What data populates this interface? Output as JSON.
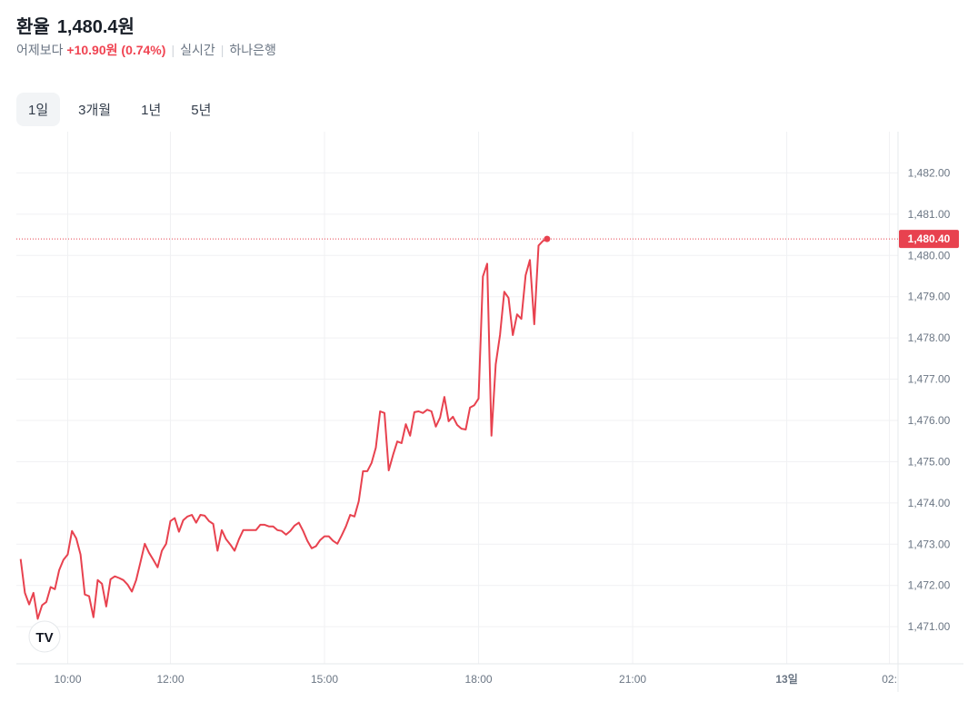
{
  "header": {
    "title": "환율",
    "price": "1,480.4원",
    "compare_label": "어제보다",
    "change": "+10.90원 (0.74%)",
    "mode": "실시간",
    "source": "하나은행"
  },
  "tabs": [
    {
      "label": "1일",
      "active": true
    },
    {
      "label": "3개월",
      "active": false
    },
    {
      "label": "1년",
      "active": false
    },
    {
      "label": "5년",
      "active": false
    }
  ],
  "colors": {
    "line": "#e8424f",
    "change": "#f04452",
    "grid": "#f0f1f3"
  },
  "icons": {
    "logo": "tradingview-logo"
  },
  "chart_data": {
    "type": "line",
    "title": "",
    "xlabel": "",
    "ylabel": "",
    "ylim": [
      1470.1,
      1483.0
    ],
    "xlim": [
      "09:00",
      "26:10"
    ],
    "grid": true,
    "y_ticks": [
      "1,471.00",
      "1,472.00",
      "1,473.00",
      "1,474.00",
      "1,475.00",
      "1,476.00",
      "1,477.00",
      "1,478.00",
      "1,479.00",
      "1,480.00",
      "1,481.00",
      "1,482.00"
    ],
    "x_ticks": [
      {
        "label": "10:00",
        "time": "10:00",
        "bold": false
      },
      {
        "label": "12:00",
        "time": "12:00",
        "bold": false
      },
      {
        "label": "15:00",
        "time": "15:00",
        "bold": false
      },
      {
        "label": "18:00",
        "time": "18:00",
        "bold": false
      },
      {
        "label": "21:00",
        "time": "21:00",
        "bold": false
      },
      {
        "label": "13일",
        "time": "24:00",
        "bold": true
      },
      {
        "label": "02:",
        "time": "26:00",
        "bold": false
      }
    ],
    "last_price_label": "1,480.40",
    "last_price": 1480.4,
    "series": [
      {
        "x": [
          "09:05",
          "09:10",
          "09:15",
          "09:20",
          "09:25",
          "09:30",
          "09:35",
          "09:40",
          "09:45",
          "09:50",
          "09:55",
          "10:00",
          "10:05",
          "10:10",
          "10:15",
          "10:20",
          "10:25",
          "10:30",
          "10:35",
          "10:40",
          "10:45",
          "10:50",
          "10:55",
          "11:00",
          "11:05",
          "11:10",
          "11:15",
          "11:20",
          "11:25",
          "11:30",
          "11:35",
          "11:40",
          "11:45",
          "11:50",
          "11:55",
          "12:00",
          "12:05",
          "12:10",
          "12:15",
          "12:20",
          "12:25",
          "12:30",
          "12:35",
          "12:40",
          "12:45",
          "12:50",
          "12:55",
          "13:00",
          "13:05",
          "13:10",
          "13:15",
          "13:20",
          "13:25",
          "13:30",
          "13:35",
          "13:40",
          "13:45",
          "13:50",
          "13:55",
          "14:00",
          "14:05",
          "14:10",
          "14:15",
          "14:20",
          "14:25",
          "14:30",
          "14:35",
          "14:40",
          "14:45",
          "14:50",
          "14:55",
          "15:00",
          "15:05",
          "15:10",
          "15:15",
          "15:20",
          "15:25",
          "15:30",
          "15:35",
          "15:40",
          "15:45",
          "15:50",
          "15:55",
          "16:00",
          "16:05",
          "16:10",
          "16:15",
          "16:20",
          "16:25",
          "16:30",
          "16:35",
          "16:40",
          "16:45",
          "16:50",
          "16:55",
          "17:00",
          "17:05",
          "17:10",
          "17:15",
          "17:20",
          "17:25",
          "17:30",
          "17:35",
          "17:40",
          "17:45",
          "17:50",
          "17:55",
          "18:00",
          "18:05",
          "18:10",
          "18:15",
          "18:20",
          "18:25",
          "18:30",
          "18:35",
          "18:40",
          "18:45",
          "18:50",
          "18:55",
          "19:00",
          "19:05",
          "19:10",
          "19:15",
          "19:20"
        ],
        "values": [
          1472.64,
          1471.82,
          1471.54,
          1471.82,
          1471.19,
          1471.52,
          1471.6,
          1471.96,
          1471.91,
          1472.37,
          1472.62,
          1472.75,
          1473.32,
          1473.14,
          1472.75,
          1471.78,
          1471.74,
          1471.23,
          1472.13,
          1472.04,
          1471.49,
          1472.15,
          1472.22,
          1472.18,
          1472.13,
          1472.02,
          1471.85,
          1472.13,
          1472.57,
          1473.01,
          1472.79,
          1472.62,
          1472.44,
          1472.84,
          1473.01,
          1473.56,
          1473.63,
          1473.3,
          1473.58,
          1473.67,
          1473.71,
          1473.52,
          1473.71,
          1473.69,
          1473.56,
          1473.49,
          1472.84,
          1473.34,
          1473.12,
          1472.99,
          1472.84,
          1473.12,
          1473.34,
          1473.34,
          1473.34,
          1473.34,
          1473.47,
          1473.47,
          1473.43,
          1473.43,
          1473.34,
          1473.32,
          1473.23,
          1473.32,
          1473.45,
          1473.52,
          1473.32,
          1473.08,
          1472.9,
          1472.95,
          1473.1,
          1473.19,
          1473.19,
          1473.08,
          1473.01,
          1473.21,
          1473.43,
          1473.71,
          1473.67,
          1474.04,
          1474.77,
          1474.77,
          1474.97,
          1475.34,
          1476.22,
          1476.18,
          1474.79,
          1475.16,
          1475.49,
          1475.45,
          1475.91,
          1475.63,
          1476.2,
          1476.22,
          1476.18,
          1476.26,
          1476.22,
          1475.85,
          1476.07,
          1476.57,
          1475.98,
          1476.09,
          1475.89,
          1475.8,
          1475.78,
          1476.31,
          1476.37,
          1476.53,
          1479.49,
          1479.8,
          1475.63,
          1477.36,
          1478.07,
          1479.12,
          1478.97,
          1478.07,
          1478.57,
          1478.46,
          1479.52,
          1479.89,
          1478.33,
          1480.24,
          1480.35,
          1480.4
        ]
      }
    ]
  }
}
